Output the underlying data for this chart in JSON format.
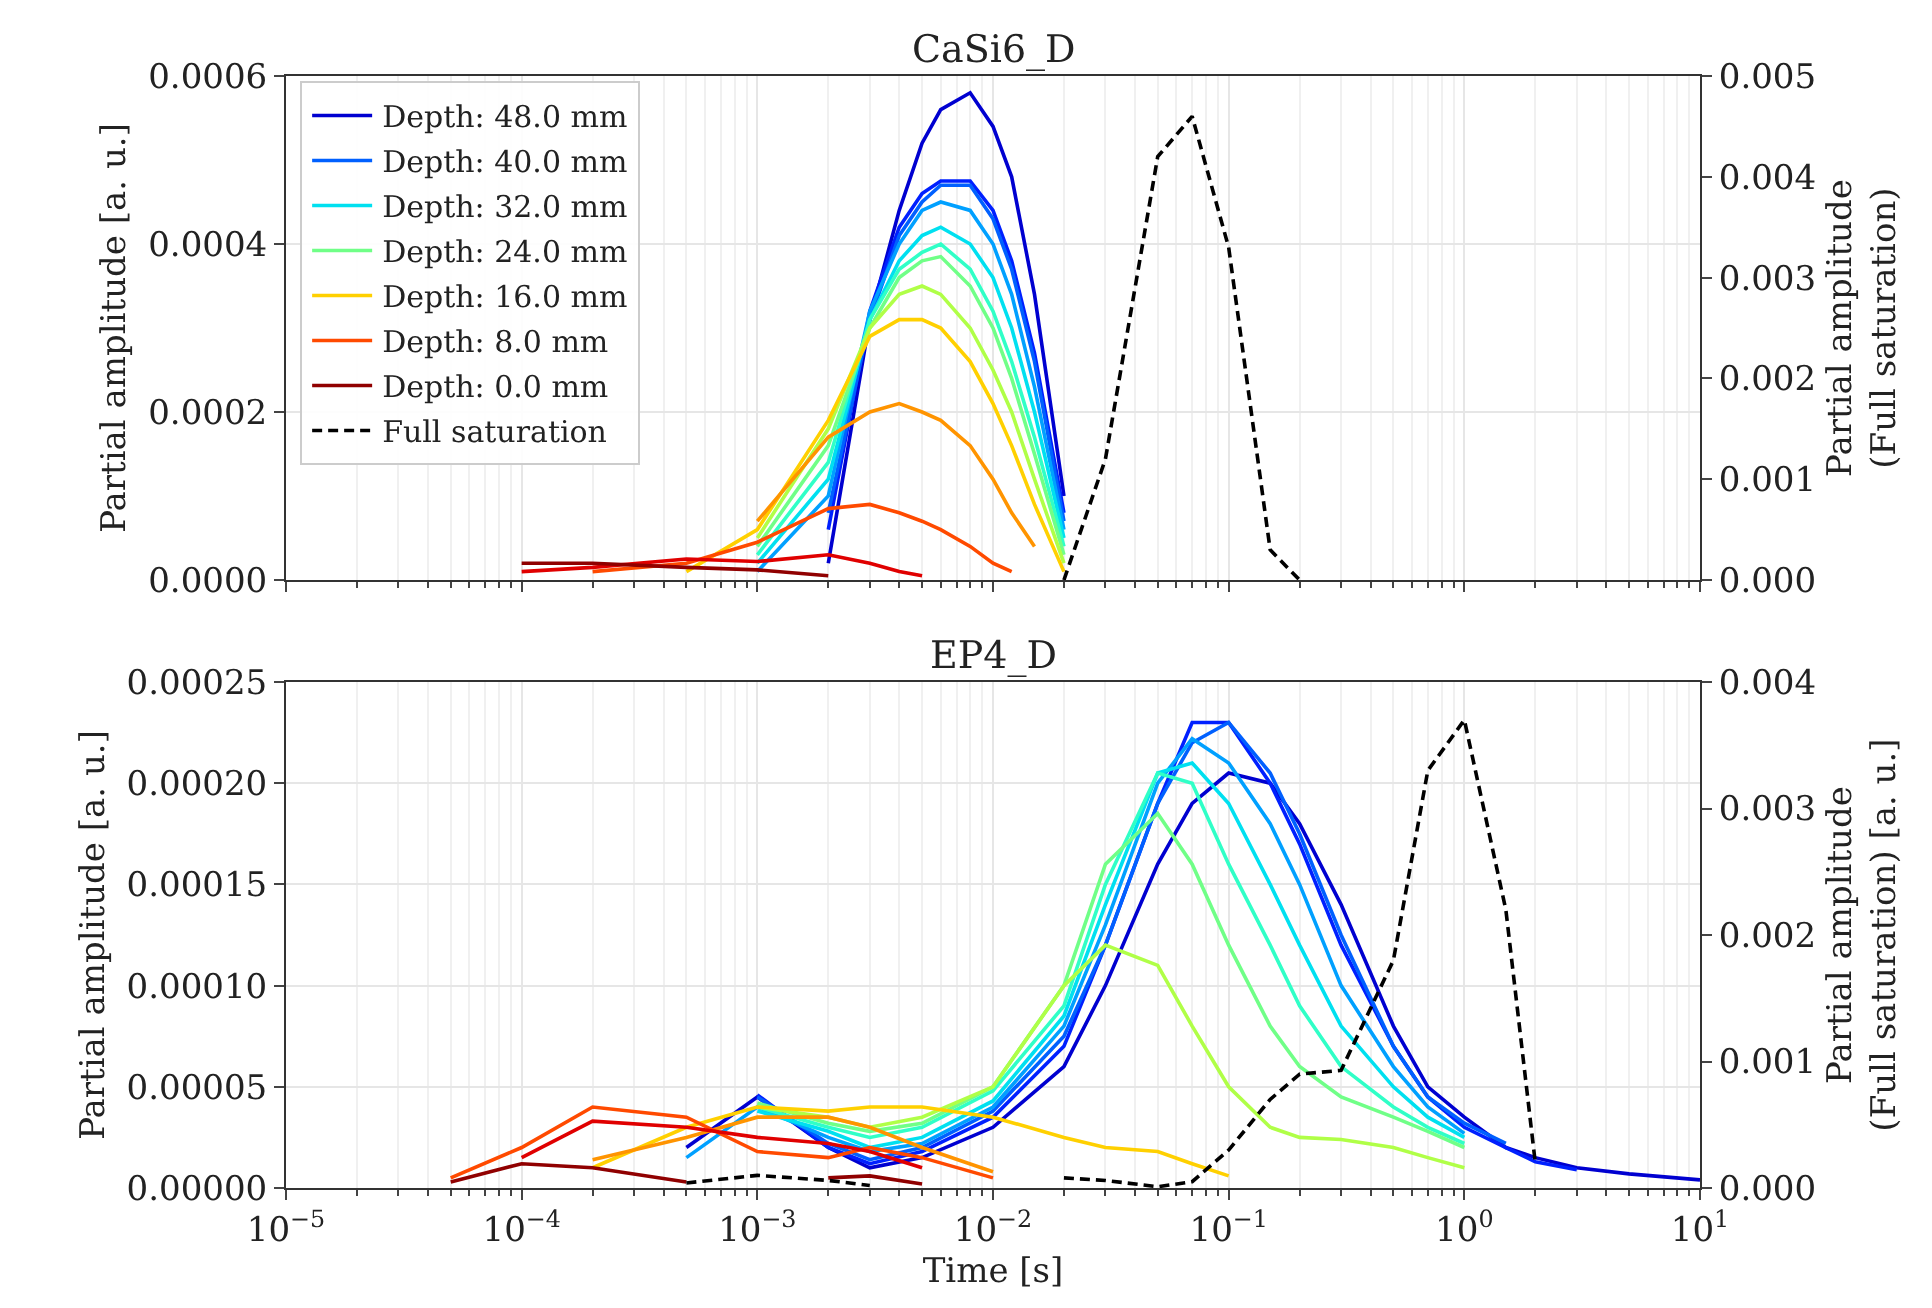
{
  "chart_data": [
    {
      "type": "line",
      "title": "CaSi6_D",
      "ylabel": "Partial amplitude [a. u.]",
      "y2label": "Partial amplitude\n(Full saturation)",
      "log": "x",
      "grid": true,
      "legend": "top left",
      "tick_labels": "y",
      "x": [
        0.0001,
        0.0002,
        0.0005,
        0.001,
        0.002,
        0.003,
        0.004,
        0.005,
        0.006,
        0.008,
        0.01,
        0.012,
        0.015,
        0.02,
        0.03,
        0.05,
        0.07,
        0.1,
        0.15,
        0.2
      ],
      "xlim": [
        1e-05,
        10
      ],
      "xticks": [
        {
          "value": 1e-05,
          "label": null
        },
        {
          "value": 0.0001,
          "label": null
        },
        {
          "value": 0.001,
          "label": null
        },
        {
          "value": 0.01,
          "label": null
        },
        {
          "value": 0.1,
          "label": null
        },
        {
          "value": 1,
          "label": null
        },
        {
          "value": 10,
          "label": null
        }
      ],
      "ylim": [
        0,
        0.0006
      ],
      "yticks": [
        {
          "value": 0,
          "label": "0.0000"
        },
        {
          "value": 0.0002,
          "label": "0.0002"
        },
        {
          "value": 0.0004,
          "label": "0.0004"
        },
        {
          "value": 0.0006,
          "label": "0.0006"
        }
      ],
      "y2lim": [
        0,
        0.005
      ],
      "y2ticks": [
        {
          "value": 0,
          "label": "0.000"
        },
        {
          "value": 0.001,
          "label": "0.001"
        },
        {
          "value": 0.002,
          "label": "0.002"
        },
        {
          "value": 0.003,
          "label": "0.003"
        },
        {
          "value": 0.004,
          "label": "0.004"
        },
        {
          "value": 0.005,
          "label": "0.005"
        }
      ],
      "series": [
        {
          "name": "Depth: 48.0 mm",
          "color": "#0000d0",
          "values": [
            null,
            null,
            null,
            null,
            2e-05,
            0.00031,
            0.00044,
            0.00052,
            0.00056,
            0.00058,
            0.00054,
            0.00048,
            0.00034,
            0.0001,
            null,
            null,
            null,
            null,
            null,
            null
          ]
        },
        {
          "color": "#0020ff",
          "values": [
            null,
            null,
            null,
            null,
            6e-05,
            0.00032,
            0.00042,
            0.00046,
            0.000475,
            0.000475,
            0.00044,
            0.00038,
            0.00027,
            8e-05,
            null,
            null,
            null,
            null,
            null,
            null
          ]
        },
        {
          "name": "Depth: 40.0 mm",
          "color": "#0060ff",
          "values": [
            null,
            null,
            null,
            null,
            8e-05,
            0.00031,
            0.00041,
            0.00045,
            0.00047,
            0.00047,
            0.00043,
            0.00037,
            0.00026,
            7e-05,
            null,
            null,
            null,
            null,
            null,
            null
          ]
        },
        {
          "color": "#00a0ff",
          "values": [
            null,
            null,
            null,
            1e-05,
            0.0001,
            0.00032,
            0.0004,
            0.00044,
            0.00045,
            0.00044,
            0.0004,
            0.00034,
            0.00023,
            6e-05,
            null,
            null,
            null,
            null,
            null,
            null
          ]
        },
        {
          "name": "Depth: 32.0 mm",
          "color": "#00e0f0",
          "values": [
            null,
            null,
            null,
            2e-05,
            0.00012,
            0.00031,
            0.00038,
            0.00041,
            0.00042,
            0.0004,
            0.00036,
            0.0003,
            0.0002,
            5e-05,
            null,
            null,
            null,
            null,
            null,
            null
          ]
        },
        {
          "color": "#30ffc7",
          "values": [
            null,
            null,
            null,
            3e-05,
            0.00014,
            0.00031,
            0.00037,
            0.00039,
            0.0004,
            0.00037,
            0.00032,
            0.00026,
            0.00017,
            4e-05,
            null,
            null,
            null,
            null,
            null,
            null
          ]
        },
        {
          "name": "Depth: 24.0 mm",
          "color": "#70ff87",
          "values": [
            null,
            null,
            null,
            4e-05,
            0.00016,
            0.0003,
            0.00036,
            0.00038,
            0.000385,
            0.00035,
            0.0003,
            0.00024,
            0.00015,
            3e-05,
            null,
            null,
            null,
            null,
            null,
            null
          ]
        },
        {
          "color": "#b0ff47",
          "values": [
            null,
            null,
            null,
            5e-05,
            0.00018,
            0.0003,
            0.00034,
            0.00035,
            0.00034,
            0.0003,
            0.00025,
            0.0002,
            0.00012,
            2e-05,
            null,
            null,
            null,
            null,
            null,
            null
          ]
        },
        {
          "name": "Depth: 16.0 mm",
          "color": "#ffd000",
          "values": [
            null,
            null,
            1e-05,
            6e-05,
            0.00019,
            0.00029,
            0.00031,
            0.00031,
            0.0003,
            0.00026,
            0.00021,
            0.00016,
            9e-05,
            1e-05,
            null,
            null,
            null,
            null,
            null,
            null
          ]
        },
        {
          "color": "#ff9400",
          "values": [
            null,
            null,
            null,
            7e-05,
            0.00017,
            0.0002,
            0.00021,
            0.0002,
            0.00019,
            0.00016,
            0.00012,
            8e-05,
            4e-05,
            null,
            null,
            null,
            null,
            null,
            null,
            null
          ]
        },
        {
          "name": "Depth: 8.0 mm",
          "color": "#ff4a00",
          "values": [
            null,
            1e-05,
            2e-05,
            4.5e-05,
            8.5e-05,
            9e-05,
            8e-05,
            7e-05,
            6e-05,
            4e-05,
            2e-05,
            1e-05,
            null,
            null,
            null,
            null,
            null,
            null,
            null,
            null
          ]
        },
        {
          "color": "#e00000",
          "values": [
            1e-05,
            1.5e-05,
            2.5e-05,
            2.2e-05,
            3e-05,
            2e-05,
            1e-05,
            5e-06,
            null,
            null,
            null,
            null,
            null,
            null,
            null,
            null,
            null,
            null,
            null,
            null
          ]
        },
        {
          "name": "Depth: 0.0 mm",
          "color": "#900000",
          "values": [
            2e-05,
            2e-05,
            1.5e-05,
            1.2e-05,
            5e-06,
            null,
            null,
            null,
            null,
            null,
            null,
            null,
            null,
            null,
            null,
            null,
            null,
            null,
            null,
            null
          ]
        },
        {
          "name": "Full saturation",
          "color": "#000000",
          "axis": "y2",
          "line_style": "dashed",
          "values": [
            null,
            null,
            null,
            null,
            null,
            null,
            null,
            null,
            null,
            null,
            null,
            null,
            null,
            0,
            0.0012,
            0.0042,
            0.0046,
            0.0033,
            0.0003,
            0
          ]
        }
      ]
    },
    {
      "type": "line",
      "title": "EP4_D",
      "xlabel": "Time [s]",
      "ylabel": "Partial amplitude [a. u.]",
      "y2label": "Partial amplitude\n(Full saturation) [a. u.]",
      "log": "x",
      "grid": true,
      "x": [
        5e-05,
        0.0001,
        0.0002,
        0.0005,
        0.001,
        0.002,
        0.003,
        0.005,
        0.01,
        0.02,
        0.03,
        0.05,
        0.07,
        0.1,
        0.15,
        0.2,
        0.3,
        0.5,
        0.7,
        1,
        1.5,
        2,
        3,
        5,
        10
      ],
      "xlim": [
        1e-05,
        10
      ],
      "xticks": [
        {
          "value": 1e-05,
          "label": "10$^{−5}$"
        },
        {
          "value": 0.0001,
          "label": "10$^{−4}$"
        },
        {
          "value": 0.001,
          "label": "10$^{−3}$"
        },
        {
          "value": 0.01,
          "label": "10$^{−2}$"
        },
        {
          "value": 0.1,
          "label": "10$^{−1}$"
        },
        {
          "value": 1,
          "label": "10$^{0}$"
        },
        {
          "value": 10,
          "label": "10$^{1}$"
        }
      ],
      "ylim": [
        0,
        0.00025
      ],
      "yticks": [
        {
          "value": 0,
          "label": "0.00000"
        },
        {
          "value": 5e-05,
          "label": "0.00005"
        },
        {
          "value": 0.0001,
          "label": "0.00010"
        },
        {
          "value": 0.00015,
          "label": "0.00015"
        },
        {
          "value": 0.0002,
          "label": "0.00020"
        },
        {
          "value": 0.00025,
          "label": "0.00025"
        }
      ],
      "y2lim": [
        0,
        0.004
      ],
      "y2ticks": [
        {
          "value": 0,
          "label": "0.000"
        },
        {
          "value": 0.001,
          "label": "0.001"
        },
        {
          "value": 0.002,
          "label": "0.002"
        },
        {
          "value": 0.003,
          "label": "0.003"
        },
        {
          "value": 0.004,
          "label": "0.004"
        }
      ],
      "series": [
        {
          "color": "#0000d0",
          "values": [
            null,
            null,
            null,
            2e-05,
            4.5e-05,
            2e-05,
            1e-05,
            1.5e-05,
            3e-05,
            6e-05,
            0.0001,
            0.00016,
            0.00019,
            0.000205,
            0.0002,
            0.00018,
            0.00014,
            8e-05,
            5e-05,
            3.5e-05,
            2e-05,
            1.5e-05,
            1e-05,
            7e-06,
            4e-06
          ]
        },
        {
          "color": "#0020ff",
          "values": [
            null,
            null,
            null,
            null,
            4.6e-05,
            2e-05,
            1.2e-05,
            1.8e-05,
            3.5e-05,
            7e-05,
            0.00012,
            0.00019,
            0.00023,
            0.00023,
            0.0002,
            0.00017,
            0.00012,
            7e-05,
            4.5e-05,
            3e-05,
            2e-05,
            1.3e-05,
            9e-06,
            null,
            null
          ]
        },
        {
          "color": "#0060ff",
          "values": [
            null,
            null,
            null,
            null,
            4.5e-05,
            2.2e-05,
            1.4e-05,
            2e-05,
            3.8e-05,
            7.5e-05,
            0.00012,
            0.00019,
            0.00022,
            0.00023,
            0.000205,
            0.000175,
            0.000125,
            7e-05,
            4.5e-05,
            3.2e-05,
            2.2e-05,
            null,
            null,
            null,
            null
          ]
        },
        {
          "color": "#00a0ff",
          "values": [
            null,
            null,
            null,
            1.5e-05,
            4e-05,
            2.5e-05,
            1.8e-05,
            2.2e-05,
            4e-05,
            8e-05,
            0.00013,
            0.0002,
            0.000222,
            0.00021,
            0.00018,
            0.00015,
            0.0001,
            6e-05,
            4e-05,
            2.7e-05,
            null,
            null,
            null,
            null,
            null
          ]
        },
        {
          "color": "#00e0f0",
          "values": [
            null,
            null,
            null,
            null,
            3.8e-05,
            2.8e-05,
            2e-05,
            2.5e-05,
            4.3e-05,
            8.5e-05,
            0.00014,
            0.000205,
            0.00021,
            0.00019,
            0.00015,
            0.00012,
            8e-05,
            5e-05,
            3.5e-05,
            2.5e-05,
            null,
            null,
            null,
            null,
            null
          ]
        },
        {
          "color": "#30ffc7",
          "values": [
            null,
            null,
            null,
            null,
            4e-05,
            3e-05,
            2.5e-05,
            3e-05,
            4.8e-05,
            9e-05,
            0.00015,
            0.000205,
            0.0002,
            0.00016,
            0.00012,
            9e-05,
            6e-05,
            4e-05,
            3e-05,
            2.2e-05,
            null,
            null,
            null,
            null,
            null
          ]
        },
        {
          "color": "#70ff87",
          "values": [
            null,
            null,
            null,
            null,
            4.2e-05,
            3.2e-05,
            2.8e-05,
            3.2e-05,
            5e-05,
            0.0001,
            0.00016,
            0.000185,
            0.00016,
            0.00012,
            8e-05,
            6e-05,
            4.5e-05,
            3.5e-05,
            2.8e-05,
            2e-05,
            null,
            null,
            null,
            null,
            null
          ]
        },
        {
          "color": "#b0ff47",
          "values": [
            null,
            null,
            null,
            null,
            4e-05,
            3.5e-05,
            3e-05,
            3.5e-05,
            5e-05,
            0.0001,
            0.00012,
            0.00011,
            8e-05,
            5e-05,
            3e-05,
            2.5e-05,
            2.4e-05,
            2e-05,
            1.5e-05,
            1e-05,
            null,
            null,
            null,
            null,
            null
          ]
        },
        {
          "color": "#ffd000",
          "values": [
            null,
            null,
            1e-05,
            3e-05,
            4e-05,
            3.8e-05,
            4e-05,
            4e-05,
            3.5e-05,
            2.5e-05,
            2e-05,
            1.8e-05,
            1.2e-05,
            6e-06,
            null,
            null,
            null,
            null,
            null,
            null,
            null,
            null,
            null,
            null,
            null
          ]
        },
        {
          "color": "#ff9400",
          "values": [
            null,
            null,
            1.4e-05,
            2.5e-05,
            3.5e-05,
            3.5e-05,
            3e-05,
            2e-05,
            8e-06,
            null,
            null,
            null,
            null,
            null,
            null,
            null,
            null,
            null,
            null,
            null,
            null,
            null,
            null,
            null,
            null
          ]
        },
        {
          "color": "#ff4a00",
          "values": [
            5e-06,
            2e-05,
            4e-05,
            3.5e-05,
            1.8e-05,
            1.5e-05,
            2e-05,
            1.5e-05,
            5e-06,
            null,
            null,
            null,
            null,
            null,
            null,
            null,
            null,
            null,
            null,
            null,
            null,
            null,
            null,
            null,
            null
          ]
        },
        {
          "color": "#e00000",
          "values": [
            null,
            1.5e-05,
            3.3e-05,
            3e-05,
            2.5e-05,
            2.2e-05,
            1.8e-05,
            1e-05,
            null,
            null,
            null,
            null,
            null,
            null,
            null,
            null,
            null,
            null,
            null,
            null,
            null,
            null,
            null,
            null,
            null
          ]
        },
        {
          "color": "#900000",
          "values": [
            3e-06,
            1.2e-05,
            1e-05,
            3e-06,
            null,
            5e-06,
            6e-06,
            2e-06,
            null,
            null,
            null,
            null,
            null,
            null,
            null,
            null,
            null,
            null,
            null,
            null,
            null,
            null,
            null,
            null,
            null
          ]
        },
        {
          "color": "#000000",
          "axis": "y2",
          "line_style": "dashed",
          "values": [
            null,
            null,
            null,
            4e-05,
            0.0001,
            6e-05,
            2e-05,
            null,
            null,
            8e-05,
            6e-05,
            1e-05,
            5e-05,
            0.0003,
            0.0007,
            0.0009,
            0.00093,
            0.0018,
            0.0033,
            0.0037,
            0.0022,
            0.0002,
            null,
            null,
            null
          ]
        }
      ]
    }
  ]
}
